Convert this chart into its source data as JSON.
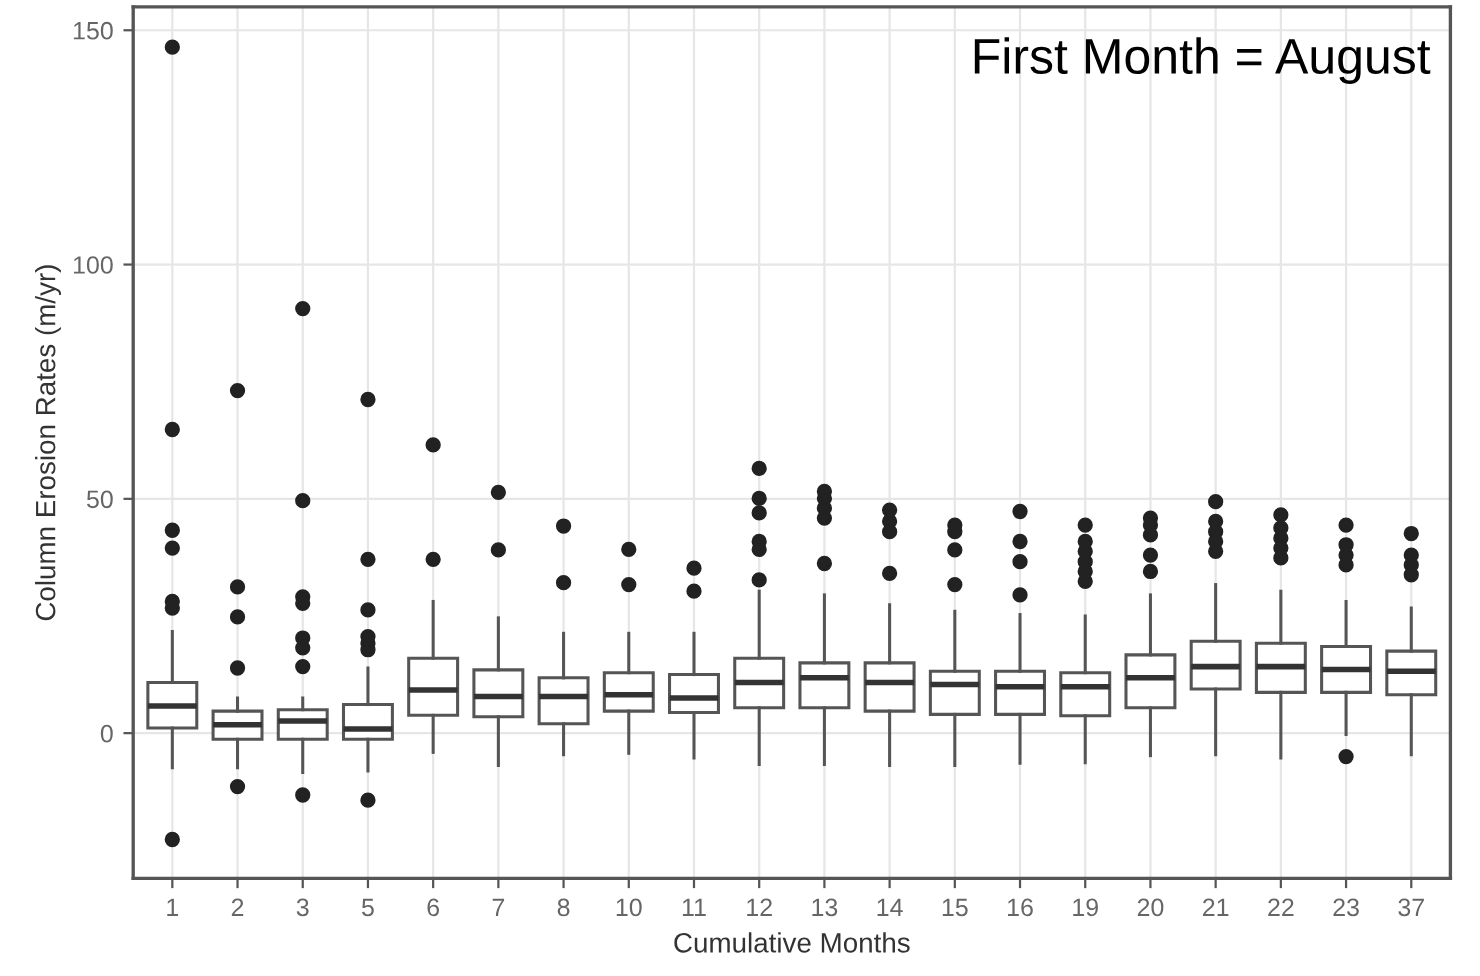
{
  "chart_data": {
    "type": "box",
    "xlabel": "Cumulative Months",
    "ylabel": "Column Erosion Rates (m/yr)",
    "annotations": [
      "First Month = August"
    ],
    "categories": [
      "1",
      "2",
      "3",
      "5",
      "6",
      "7",
      "8",
      "10",
      "11",
      "12",
      "13",
      "14",
      "15",
      "16",
      "19",
      "20",
      "21",
      "22",
      "23",
      "37"
    ],
    "ylim": [
      -31,
      155
    ],
    "yticks": [
      0,
      50,
      100,
      150
    ],
    "grid": true,
    "legend": false,
    "boxes": [
      {
        "low": -7.4,
        "q1": 1.1,
        "median": 5.8,
        "q3": 10.8,
        "high": 21.7,
        "outliers": [
          146.4,
          64.8,
          43.3,
          39.5,
          28.1,
          26.7,
          -22.7
        ]
      },
      {
        "low": -7.4,
        "q1": -1.3,
        "median": 1.8,
        "q3": 4.7,
        "high": 7.5,
        "outliers": [
          73.1,
          31.2,
          24.8,
          13.9,
          -11.4
        ]
      },
      {
        "low": -8.4,
        "q1": -1.3,
        "median": 2.6,
        "q3": 5.0,
        "high": 7.5,
        "outliers": [
          90.6,
          49.6,
          29.1,
          27.7,
          20.3,
          18.2,
          14.2,
          -13.2
        ]
      },
      {
        "low": -8.1,
        "q1": -1.3,
        "median": 0.9,
        "q3": 6.1,
        "high": 13.9,
        "outliers": [
          71.2,
          37.1,
          26.3,
          20.6,
          19.2,
          17.8,
          -14.3
        ]
      },
      {
        "low": -4.1,
        "q1": 3.8,
        "median": 9.2,
        "q3": 16.0,
        "high": 28.1,
        "outliers": [
          61.5,
          37.1
        ]
      },
      {
        "low": -6.9,
        "q1": 3.5,
        "median": 7.8,
        "q3": 13.5,
        "high": 24.6,
        "outliers": [
          51.4,
          39.1
        ]
      },
      {
        "low": -4.6,
        "q1": 2.0,
        "median": 7.8,
        "q3": 11.8,
        "high": 21.3,
        "outliers": [
          44.2,
          32.1
        ]
      },
      {
        "low": -4.3,
        "q1": 4.7,
        "median": 8.2,
        "q3": 12.9,
        "high": 21.3,
        "outliers": [
          39.2,
          31.7
        ]
      },
      {
        "low": -5.3,
        "q1": 4.4,
        "median": 7.5,
        "q3": 12.5,
        "high": 21.3,
        "outliers": [
          35.2,
          30.3
        ]
      },
      {
        "low": -6.7,
        "q1": 5.4,
        "median": 10.8,
        "q3": 16.0,
        "high": 30.3,
        "outliers": [
          56.5,
          50.1,
          47.0,
          40.9,
          39.2,
          32.7
        ]
      },
      {
        "low": -6.7,
        "q1": 5.4,
        "median": 11.8,
        "q3": 15.0,
        "high": 29.5,
        "outliers": [
          51.6,
          50.1,
          48.0,
          45.9,
          36.2
        ]
      },
      {
        "low": -6.9,
        "q1": 4.7,
        "median": 10.8,
        "q3": 15.0,
        "high": 27.4,
        "outliers": [
          47.6,
          45.2,
          43.0,
          34.1
        ]
      },
      {
        "low": -6.9,
        "q1": 4.0,
        "median": 10.4,
        "q3": 13.2,
        "high": 26.0,
        "outliers": [
          44.4,
          43.0,
          39.1,
          31.7
        ]
      },
      {
        "low": -6.4,
        "q1": 4.0,
        "median": 9.9,
        "q3": 13.2,
        "high": 25.3,
        "outliers": [
          47.3,
          40.9,
          36.6,
          29.5
        ]
      },
      {
        "low": -6.3,
        "q1": 3.7,
        "median": 9.9,
        "q3": 12.9,
        "high": 25.0,
        "outliers": [
          44.4,
          40.9,
          38.8,
          36.6,
          34.5,
          32.4
        ]
      },
      {
        "low": -4.8,
        "q1": 5.4,
        "median": 11.8,
        "q3": 16.7,
        "high": 29.5,
        "outliers": [
          45.9,
          44.4,
          42.3,
          38.0,
          34.5
        ]
      },
      {
        "low": -4.6,
        "q1": 9.4,
        "median": 14.2,
        "q3": 19.6,
        "high": 31.7,
        "outliers": [
          49.4,
          45.2,
          43.0,
          40.9,
          38.8
        ]
      },
      {
        "low": -5.3,
        "q1": 8.7,
        "median": 14.2,
        "q3": 19.2,
        "high": 30.3,
        "outliers": [
          46.6,
          43.8,
          41.6,
          39.5,
          37.4
        ]
      },
      {
        "low": -0.3,
        "q1": 8.7,
        "median": 13.6,
        "q3": 18.5,
        "high": 28.1,
        "outliers": [
          44.4,
          40.2,
          38.0,
          35.9,
          -5.0
        ]
      },
      {
        "low": -4.6,
        "q1": 8.2,
        "median": 13.2,
        "q3": 17.5,
        "high": 26.7,
        "outliers": [
          42.6,
          38.0,
          35.9,
          33.8
        ]
      }
    ]
  }
}
